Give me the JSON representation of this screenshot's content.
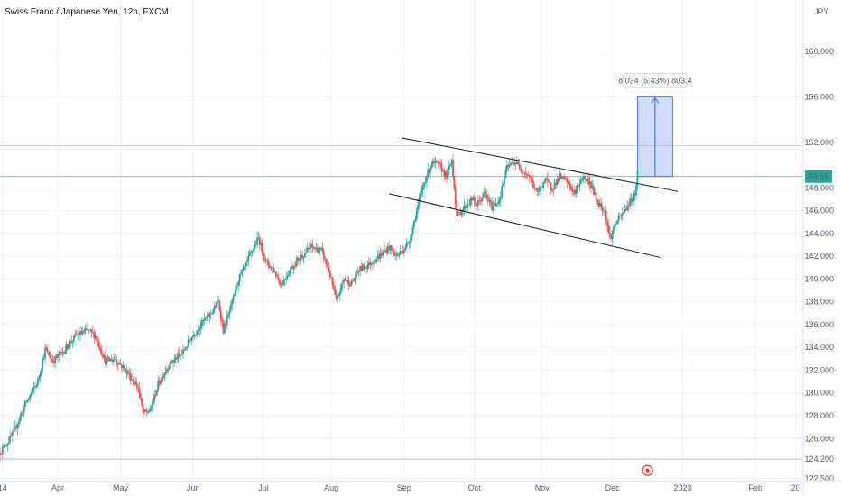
{
  "chart_data": {
    "type": "candlestick",
    "title": "Swiss Franc / Japanese Yen, 12h, FXCM",
    "currency_label": "JPY",
    "price_label": "53:15",
    "measure_label": "8.034 (5.43%) 803.4",
    "colors": {
      "up": "#26a69a",
      "down": "#ef5350",
      "measure": "#2962ff",
      "price_line": "#26a69a"
    },
    "ylim": [
      122.3,
      164.5
    ],
    "xlim": [
      0,
      320
    ],
    "y_ticks": [
      "160.000",
      "156.000",
      "152.000",
      "148.000",
      "146.000",
      "144.000",
      "142.000",
      "140.000",
      "138.000",
      "136.000",
      "134.000",
      "132.000",
      "130.000",
      "128.000",
      "126.000",
      "124.200",
      "122.500"
    ],
    "x_ticks": [
      {
        "label": "14",
        "x": 1
      },
      {
        "label": "Apr",
        "x": 23
      },
      {
        "label": "May",
        "x": 48
      },
      {
        "label": "Jun",
        "x": 77
      },
      {
        "label": "Jul",
        "x": 105
      },
      {
        "label": "Aug",
        "x": 132
      },
      {
        "label": "Sep",
        "x": 161
      },
      {
        "label": "Oct",
        "x": 189
      },
      {
        "label": "Nov",
        "x": 216
      },
      {
        "label": "Dec",
        "x": 244
      },
      {
        "label": "2023",
        "x": 272
      },
      {
        "label": "Feb",
        "x": 301
      },
      {
        "label": "20",
        "x": 317
      }
    ],
    "anchors": [
      [
        0,
        124.8
      ],
      [
        5,
        126.3
      ],
      [
        10,
        129.0
      ],
      [
        15,
        131.0
      ],
      [
        18,
        133.8
      ],
      [
        21,
        132.8
      ],
      [
        25,
        133.6
      ],
      [
        30,
        135.0
      ],
      [
        35,
        135.5
      ],
      [
        38,
        135.0
      ],
      [
        42,
        132.8
      ],
      [
        46,
        133.0
      ],
      [
        50,
        132.0
      ],
      [
        55,
        130.5
      ],
      [
        57,
        128.2
      ],
      [
        60,
        128.5
      ],
      [
        63,
        130.8
      ],
      [
        67,
        132.4
      ],
      [
        70,
        133.0
      ],
      [
        73,
        133.6
      ],
      [
        76,
        134.8
      ],
      [
        80,
        136.0
      ],
      [
        84,
        137.0
      ],
      [
        87,
        138.0
      ],
      [
        89,
        135.5
      ],
      [
        92,
        137.5
      ],
      [
        95,
        140.0
      ],
      [
        98,
        141.2
      ],
      [
        100,
        142.3
      ],
      [
        103,
        143.6
      ],
      [
        106,
        141.5
      ],
      [
        109,
        140.8
      ],
      [
        112,
        139.5
      ],
      [
        116,
        141.0
      ],
      [
        120,
        142.0
      ],
      [
        124,
        142.8
      ],
      [
        128,
        142.5
      ],
      [
        131,
        140.8
      ],
      [
        134,
        138.0
      ],
      [
        137,
        140.0
      ],
      [
        140,
        139.6
      ],
      [
        143,
        140.8
      ],
      [
        147,
        141.3
      ],
      [
        151,
        142.0
      ],
      [
        155,
        142.8
      ],
      [
        158,
        142.0
      ],
      [
        163,
        143.2
      ],
      [
        166,
        146.0
      ],
      [
        169,
        148.5
      ],
      [
        172,
        150.2
      ],
      [
        175,
        150.0
      ],
      [
        178,
        149.0
      ],
      [
        180,
        150.5
      ],
      [
        182,
        145.5
      ],
      [
        185,
        146.3
      ],
      [
        188,
        147.0
      ],
      [
        190,
        146.5
      ],
      [
        193,
        147.5
      ],
      [
        196,
        146.3
      ],
      [
        199,
        147.0
      ],
      [
        202,
        149.8
      ],
      [
        205,
        150.3
      ],
      [
        208,
        149.6
      ],
      [
        211,
        149.0
      ],
      [
        214,
        147.5
      ],
      [
        217,
        148.7
      ],
      [
        220,
        148.0
      ],
      [
        223,
        149.0
      ],
      [
        226,
        148.5
      ],
      [
        229,
        147.5
      ],
      [
        232,
        149.0
      ],
      [
        235,
        148.5
      ],
      [
        238,
        146.8
      ],
      [
        241,
        146.0
      ],
      [
        243,
        143.5
      ],
      [
        245,
        144.8
      ],
      [
        248,
        145.7
      ],
      [
        251,
        146.8
      ],
      [
        253,
        147.5
      ],
      [
        254,
        149.3
      ]
    ],
    "channel_upper": {
      "x1": 160,
      "y1": 152.4,
      "x2": 270,
      "y2": 147.7
    },
    "channel_lower": {
      "x1": 155,
      "y1": 147.5,
      "x2": 263,
      "y2": 141.9
    },
    "measure_box": {
      "x1": 254,
      "x2": 268,
      "y_low": 149.0,
      "y_high": 156.0
    },
    "h_lines": [
      151.7,
      149.0,
      124.2
    ],
    "marker": {
      "x": 258,
      "y": 123.2
    }
  }
}
